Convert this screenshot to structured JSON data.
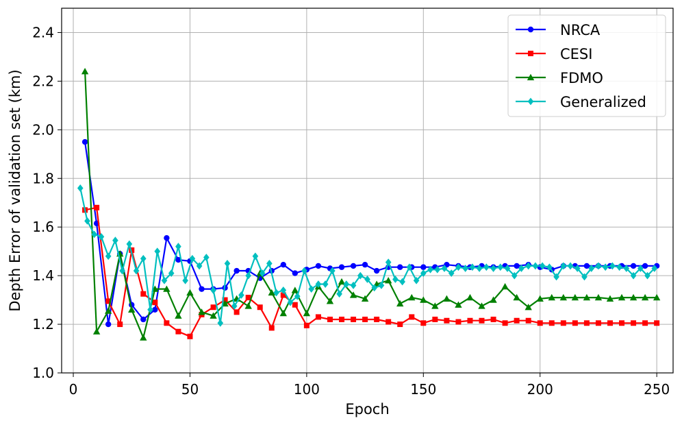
{
  "chart_data": {
    "type": "line",
    "xlabel": "Epoch",
    "ylabel": "Depth Error of validation set (km)",
    "xlim": [
      -5,
      257
    ],
    "ylim": [
      1.0,
      2.5
    ],
    "xticks": [
      0,
      50,
      100,
      150,
      200,
      250
    ],
    "yticks": [
      1.0,
      1.2,
      1.4,
      1.6,
      1.8,
      2.0,
      2.2,
      2.4
    ],
    "xtick_labels": [
      "0",
      "50",
      "100",
      "150",
      "200",
      "250"
    ],
    "ytick_labels": [
      "1.0",
      "1.2",
      "1.4",
      "1.6",
      "1.8",
      "2.0",
      "2.2",
      "2.4"
    ],
    "grid": true,
    "legend_position": "top-right",
    "series": [
      {
        "name": "NRCA",
        "color": "#0000ff",
        "marker": "circle",
        "x": [
          5,
          10,
          15,
          20,
          25,
          30,
          35,
          40,
          45,
          50,
          55,
          60,
          65,
          70,
          75,
          80,
          85,
          90,
          95,
          100,
          105,
          110,
          115,
          120,
          125,
          130,
          135,
          140,
          145,
          150,
          155,
          160,
          165,
          170,
          175,
          180,
          185,
          190,
          195,
          200,
          205,
          210,
          215,
          220,
          225,
          230,
          235,
          240,
          245,
          250
        ],
        "y": [
          1.95,
          1.615,
          1.2,
          1.49,
          1.28,
          1.22,
          1.26,
          1.555,
          1.465,
          1.46,
          1.345,
          1.345,
          1.35,
          1.42,
          1.42,
          1.39,
          1.42,
          1.445,
          1.41,
          1.425,
          1.44,
          1.43,
          1.435,
          1.44,
          1.445,
          1.42,
          1.435,
          1.435,
          1.435,
          1.435,
          1.435,
          1.445,
          1.44,
          1.435,
          1.44,
          1.435,
          1.44,
          1.44,
          1.445,
          1.435,
          1.425,
          1.44,
          1.44,
          1.44,
          1.44,
          1.44,
          1.44,
          1.44,
          1.44,
          1.44
        ]
      },
      {
        "name": "CESI",
        "color": "#ff0000",
        "marker": "square",
        "x": [
          5,
          10,
          15,
          20,
          25,
          30,
          35,
          40,
          45,
          50,
          55,
          60,
          65,
          70,
          75,
          80,
          85,
          90,
          95,
          100,
          105,
          110,
          115,
          120,
          125,
          130,
          135,
          140,
          145,
          150,
          155,
          160,
          165,
          170,
          175,
          180,
          185,
          190,
          195,
          200,
          205,
          210,
          215,
          220,
          225,
          230,
          235,
          240,
          245,
          250
        ],
        "y": [
          1.67,
          1.68,
          1.295,
          1.2,
          1.505,
          1.325,
          1.29,
          1.205,
          1.17,
          1.15,
          1.24,
          1.27,
          1.3,
          1.25,
          1.31,
          1.27,
          1.185,
          1.32,
          1.28,
          1.195,
          1.23,
          1.22,
          1.22,
          1.22,
          1.22,
          1.22,
          1.21,
          1.2,
          1.23,
          1.205,
          1.22,
          1.215,
          1.21,
          1.215,
          1.215,
          1.22,
          1.205,
          1.215,
          1.215,
          1.205,
          1.205,
          1.205,
          1.205,
          1.205,
          1.205,
          1.205,
          1.205,
          1.205,
          1.205,
          1.205
        ]
      },
      {
        "name": "FDMO",
        "color": "#008000",
        "marker": "triangle",
        "x": [
          5,
          10,
          15,
          20,
          25,
          30,
          35,
          40,
          45,
          50,
          55,
          60,
          65,
          70,
          75,
          80,
          85,
          90,
          95,
          100,
          105,
          110,
          115,
          120,
          125,
          130,
          135,
          140,
          145,
          150,
          155,
          160,
          165,
          170,
          175,
          180,
          185,
          190,
          195,
          200,
          205,
          210,
          215,
          220,
          225,
          230,
          235,
          240,
          245,
          250
        ],
        "y": [
          2.24,
          1.17,
          1.255,
          1.49,
          1.26,
          1.145,
          1.345,
          1.345,
          1.235,
          1.33,
          1.25,
          1.235,
          1.285,
          1.305,
          1.275,
          1.41,
          1.33,
          1.245,
          1.34,
          1.245,
          1.355,
          1.295,
          1.375,
          1.32,
          1.305,
          1.365,
          1.38,
          1.285,
          1.31,
          1.3,
          1.275,
          1.305,
          1.28,
          1.31,
          1.275,
          1.3,
          1.355,
          1.31,
          1.27,
          1.305,
          1.31,
          1.31,
          1.31,
          1.31,
          1.31,
          1.305,
          1.31,
          1.31,
          1.31,
          1.31
        ]
      },
      {
        "name": "Generalized",
        "color": "#00bfbf",
        "marker": "diamond",
        "x": [
          3,
          6,
          9,
          12,
          15,
          18,
          21,
          24,
          27,
          30,
          33,
          36,
          39,
          42,
          45,
          48,
          51,
          54,
          57,
          60,
          63,
          66,
          69,
          72,
          75,
          78,
          81,
          84,
          87,
          90,
          93,
          96,
          99,
          102,
          105,
          108,
          111,
          114,
          117,
          120,
          123,
          126,
          129,
          132,
          135,
          138,
          141,
          144,
          147,
          150,
          153,
          156,
          159,
          162,
          165,
          168,
          171,
          174,
          177,
          180,
          183,
          186,
          189,
          192,
          195,
          198,
          201,
          204,
          207,
          210,
          213,
          216,
          219,
          222,
          225,
          228,
          231,
          234,
          237,
          240,
          243,
          246,
          249
        ],
        "y": [
          1.76,
          1.625,
          1.57,
          1.56,
          1.48,
          1.545,
          1.42,
          1.53,
          1.42,
          1.47,
          1.26,
          1.5,
          1.38,
          1.41,
          1.52,
          1.38,
          1.47,
          1.44,
          1.475,
          1.34,
          1.205,
          1.45,
          1.275,
          1.32,
          1.4,
          1.48,
          1.41,
          1.45,
          1.33,
          1.34,
          1.29,
          1.315,
          1.42,
          1.345,
          1.365,
          1.365,
          1.42,
          1.325,
          1.365,
          1.36,
          1.4,
          1.385,
          1.35,
          1.36,
          1.455,
          1.385,
          1.375,
          1.435,
          1.38,
          1.41,
          1.425,
          1.425,
          1.43,
          1.41,
          1.435,
          1.43,
          1.435,
          1.43,
          1.435,
          1.43,
          1.435,
          1.43,
          1.4,
          1.43,
          1.44,
          1.44,
          1.44,
          1.435,
          1.395,
          1.44,
          1.44,
          1.43,
          1.395,
          1.43,
          1.44,
          1.435,
          1.44,
          1.435,
          1.43,
          1.4,
          1.43,
          1.4,
          1.43
        ]
      }
    ]
  }
}
